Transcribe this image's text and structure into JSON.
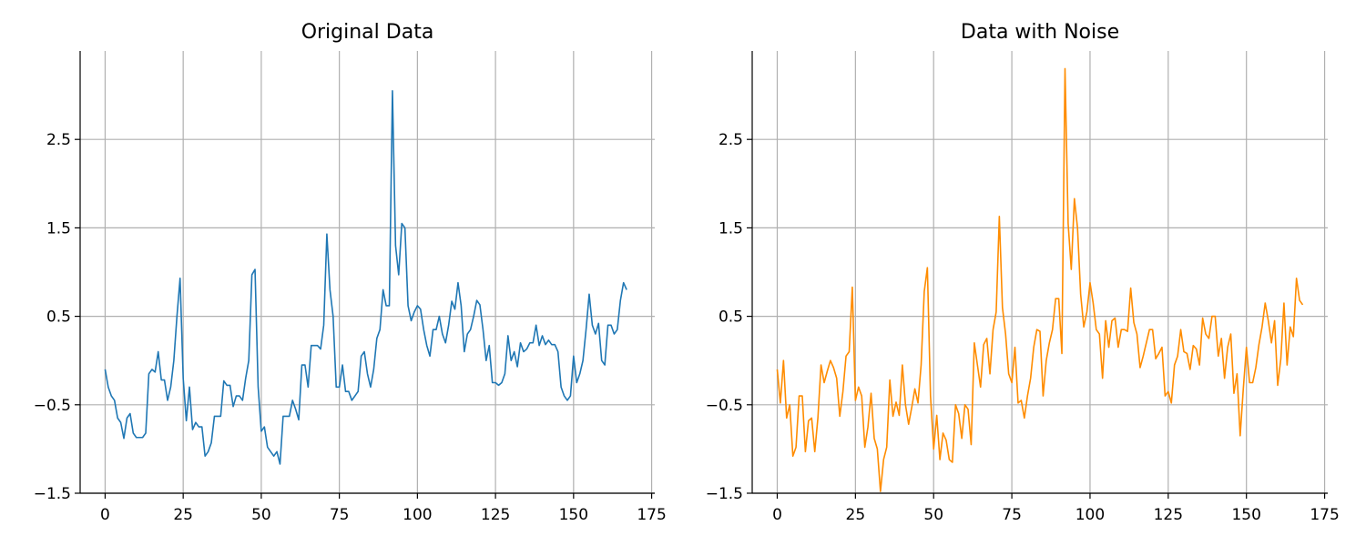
{
  "colors": {
    "series_original": "#1f77b4",
    "series_noise": "#ff8c00",
    "grid": "#b0b0b0",
    "axis": "#000000"
  },
  "chart_data": [
    {
      "type": "line",
      "title": "Original Data",
      "xlabel": "",
      "ylabel": "",
      "xlim": [
        -8,
        176
      ],
      "ylim": [
        -1.5,
        3.5
      ],
      "xticks": [
        0,
        25,
        50,
        75,
        100,
        125,
        150,
        175
      ],
      "xtick_labels": [
        "0",
        "25",
        "50",
        "75",
        "100",
        "125",
        "150",
        "175"
      ],
      "yticks": [
        -1.5,
        -0.5,
        0.5,
        1.5,
        2.5
      ],
      "ytick_labels": [
        "−1.5",
        "−0.5",
        "0.5",
        "1.5",
        "2.5"
      ],
      "grid": true,
      "series": [
        {
          "color": "#1f77b4",
          "x_start": 0,
          "x_step": 1,
          "values": [
            -0.1,
            -0.3,
            -0.4,
            -0.45,
            -0.65,
            -0.7,
            -0.88,
            -0.65,
            -0.6,
            -0.82,
            -0.87,
            -0.87,
            -0.87,
            -0.82,
            -0.15,
            -0.1,
            -0.13,
            0.1,
            -0.22,
            -0.22,
            -0.45,
            -0.3,
            0.0,
            0.5,
            0.93,
            -0.2,
            -0.68,
            -0.3,
            -0.78,
            -0.7,
            -0.75,
            -0.75,
            -1.08,
            -1.03,
            -0.93,
            -0.63,
            -0.63,
            -0.63,
            -0.23,
            -0.28,
            -0.28,
            -0.52,
            -0.4,
            -0.4,
            -0.45,
            -0.2,
            0.0,
            0.97,
            1.03,
            -0.3,
            -0.8,
            -0.75,
            -0.98,
            -1.03,
            -1.08,
            -1.03,
            -1.17,
            -0.63,
            -0.63,
            -0.63,
            -0.45,
            -0.55,
            -0.67,
            -0.05,
            -0.05,
            -0.3,
            0.17,
            0.17,
            0.17,
            0.13,
            0.4,
            1.43,
            0.8,
            0.5,
            -0.3,
            -0.3,
            -0.05,
            -0.35,
            -0.35,
            -0.45,
            -0.4,
            -0.35,
            0.05,
            0.1,
            -0.15,
            -0.3,
            -0.1,
            0.25,
            0.35,
            0.8,
            0.62,
            0.62,
            3.05,
            1.3,
            0.97,
            1.55,
            1.5,
            0.62,
            0.45,
            0.55,
            0.62,
            0.58,
            0.35,
            0.17,
            0.05,
            0.35,
            0.35,
            0.5,
            0.3,
            0.2,
            0.4,
            0.67,
            0.58,
            0.88,
            0.62,
            0.1,
            0.3,
            0.35,
            0.5,
            0.68,
            0.63,
            0.35,
            0.0,
            0.17,
            -0.25,
            -0.25,
            -0.28,
            -0.25,
            -0.15,
            0.28,
            0.0,
            0.1,
            -0.07,
            0.2,
            0.1,
            0.13,
            0.2,
            0.2,
            0.4,
            0.17,
            0.28,
            0.18,
            0.23,
            0.18,
            0.18,
            0.1,
            -0.3,
            -0.4,
            -0.45,
            -0.4,
            0.05,
            -0.25,
            -0.15,
            0.0,
            0.35,
            0.75,
            0.4,
            0.3,
            0.42,
            0.0,
            -0.05,
            0.4,
            0.4,
            0.3,
            0.35,
            0.68,
            0.88,
            0.8
          ]
        }
      ]
    },
    {
      "type": "line",
      "title": "Data with Noise",
      "xlabel": "",
      "ylabel": "",
      "xlim": [
        -8,
        176
      ],
      "ylim": [
        -1.5,
        3.5
      ],
      "xticks": [
        0,
        25,
        50,
        75,
        100,
        125,
        150,
        175
      ],
      "xtick_labels": [
        "0",
        "25",
        "50",
        "75",
        "100",
        "125",
        "150",
        "175"
      ],
      "yticks": [
        -1.5,
        -0.5,
        0.5,
        1.5,
        2.5
      ],
      "ytick_labels": [
        "−1.5",
        "−0.5",
        "0.5",
        "1.5",
        "2.5"
      ],
      "grid": true,
      "series": [
        {
          "color": "#ff8c00",
          "x_start": 0,
          "x_step": 1,
          "values": [
            -0.1,
            -0.48,
            0.0,
            -0.65,
            -0.5,
            -1.08,
            -0.98,
            -0.4,
            -0.4,
            -1.03,
            -0.68,
            -0.65,
            -1.03,
            -0.65,
            -0.05,
            -0.25,
            -0.12,
            0.0,
            -0.08,
            -0.2,
            -0.63,
            -0.35,
            0.05,
            0.1,
            0.83,
            -0.45,
            -0.3,
            -0.4,
            -0.98,
            -0.75,
            -0.37,
            -0.88,
            -1.0,
            -1.48,
            -1.12,
            -0.98,
            -0.22,
            -0.63,
            -0.47,
            -0.62,
            -0.05,
            -0.5,
            -0.72,
            -0.53,
            -0.32,
            -0.48,
            -0.05,
            0.78,
            1.05,
            -0.4,
            -1.0,
            -0.62,
            -1.12,
            -0.82,
            -0.9,
            -1.12,
            -1.15,
            -0.5,
            -0.6,
            -0.88,
            -0.5,
            -0.55,
            -0.95,
            0.2,
            -0.05,
            -0.3,
            0.18,
            0.25,
            -0.15,
            0.35,
            0.55,
            1.63,
            0.6,
            0.3,
            -0.15,
            -0.25,
            0.15,
            -0.48,
            -0.45,
            -0.65,
            -0.4,
            -0.2,
            0.15,
            0.35,
            0.33,
            -0.4,
            0.0,
            0.2,
            0.35,
            0.7,
            0.7,
            0.08,
            3.3,
            1.55,
            1.03,
            1.83,
            1.5,
            0.75,
            0.38,
            0.55,
            0.88,
            0.65,
            0.35,
            0.3,
            -0.2,
            0.45,
            0.15,
            0.45,
            0.48,
            0.15,
            0.35,
            0.35,
            0.33,
            0.82,
            0.43,
            0.3,
            -0.08,
            0.05,
            0.2,
            0.35,
            0.35,
            0.02,
            0.08,
            0.15,
            -0.4,
            -0.35,
            -0.48,
            -0.05,
            0.05,
            0.35,
            0.1,
            0.08,
            -0.1,
            0.17,
            0.13,
            -0.05,
            0.48,
            0.3,
            0.25,
            0.5,
            0.5,
            0.05,
            0.25,
            -0.2,
            0.15,
            0.3,
            -0.37,
            -0.15,
            -0.85,
            -0.32,
            0.15,
            -0.25,
            -0.25,
            -0.08,
            0.18,
            0.38,
            0.65,
            0.45,
            0.2,
            0.45,
            -0.28,
            0.02,
            0.65,
            -0.05,
            0.38,
            0.27,
            0.93,
            0.68,
            0.63
          ]
        }
      ]
    }
  ]
}
